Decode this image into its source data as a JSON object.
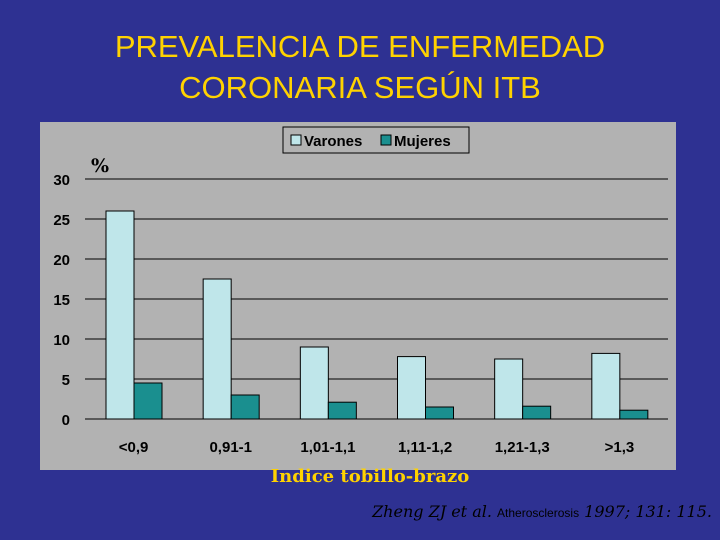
{
  "slide": {
    "title_line1": "PREVALENCIA DE ENFERMEDAD",
    "title_line2": "CORONARIA SEGÚN ITB",
    "citation_authors": "Zheng ZJ et al.",
    "citation_journal": "Atherosclerosis",
    "citation_ref": "1997; 131: 115."
  },
  "colors": {
    "background": "#2e3192",
    "title": "#ffd200",
    "plot_area": "#b2b2b2",
    "varones": "#bfe6ea",
    "mujeres": "#1a8f8f"
  },
  "chart_data": {
    "type": "bar",
    "title": "",
    "xlabel": "Indice tobillo-brazo",
    "ylabel": "%",
    "ylim": [
      0,
      30
    ],
    "yticks": [
      0,
      5,
      10,
      15,
      20,
      25,
      30
    ],
    "grid": true,
    "legend": "top-right",
    "categories": [
      "<0,9",
      "0,91-1",
      "1,01-1,1",
      "1,11-1,2",
      "1,21-1,3",
      ">1,3"
    ],
    "series": [
      {
        "name": "Varones",
        "values": [
          26,
          17.5,
          9,
          7.8,
          7.5,
          8.2
        ]
      },
      {
        "name": "Mujeres",
        "values": [
          4.5,
          3,
          2.1,
          1.5,
          1.6,
          1.1
        ]
      }
    ]
  }
}
